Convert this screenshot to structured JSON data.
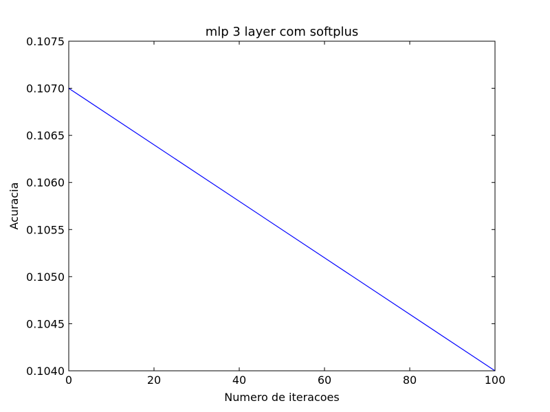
{
  "chart_data": {
    "type": "line",
    "title": "mlp 3 layer com softplus",
    "xlabel": "Numero de iteracoes",
    "ylabel": "Acuracia",
    "xlim": [
      0,
      100
    ],
    "ylim": [
      0.104,
      0.1075
    ],
    "xticks": [
      "0",
      "20",
      "40",
      "60",
      "80",
      "100"
    ],
    "yticks": [
      "0.1040",
      "0.1045",
      "0.1050",
      "0.1055",
      "0.1060",
      "0.1065",
      "0.1070",
      "0.1075"
    ],
    "grid": false,
    "series": [
      {
        "x": [
          0,
          100
        ],
        "y": [
          0.107,
          0.104
        ],
        "color": "#0000ff"
      }
    ]
  }
}
